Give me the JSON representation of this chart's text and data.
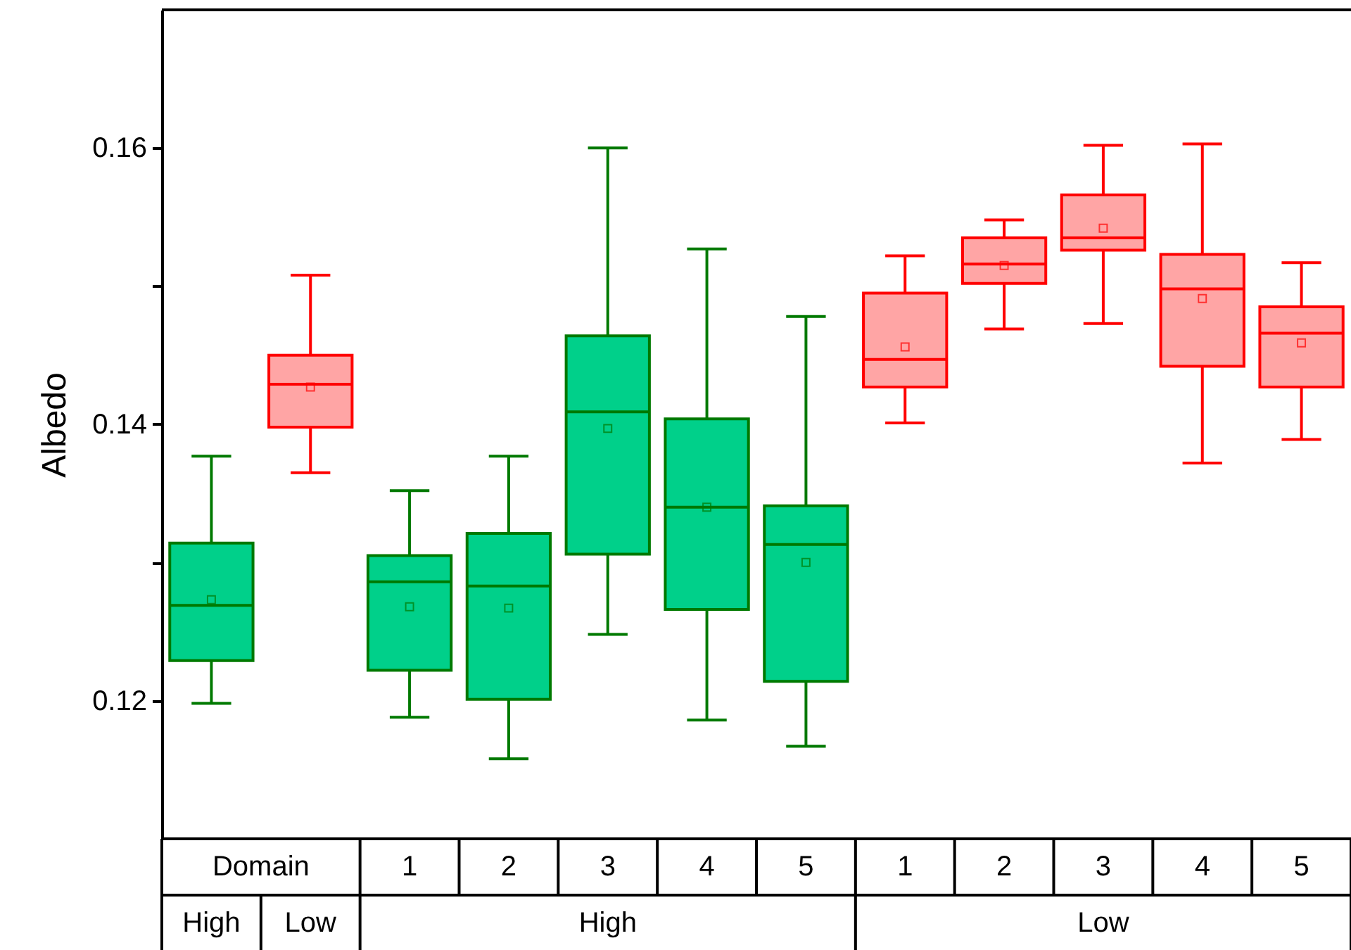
{
  "chart_data": {
    "type": "box",
    "ylabel": "Albedo",
    "categories": [
      "High",
      "Low",
      "1",
      "2",
      "3",
      "4",
      "5",
      "1",
      "2",
      "3",
      "4",
      "5"
    ],
    "annotations": [
      "Domain",
      "High",
      "Low"
    ],
    "ylim": [
      0.11,
      0.17
    ],
    "yticks": [
      0.12,
      {
        "value": 0.13,
        "label": null
      },
      0.14,
      {
        "value": 0.15,
        "label": null
      },
      0.16
    ],
    "series": [
      {
        "color": "#00d08a",
        "boxes": [
          {
            "low": 0.1198,
            "q1": 0.1229,
            "median": 0.1269,
            "q3": 0.1314,
            "high": 0.1377,
            "mean": 0.1273
          },
          null,
          {
            "low": 0.1188,
            "q1": 0.1222,
            "median": 0.1286,
            "q3": 0.1305,
            "high": 0.1352,
            "mean": 0.1268
          },
          {
            "low": 0.1158,
            "q1": 0.1201,
            "median": 0.1283,
            "q3": 0.1321,
            "high": 0.1377,
            "mean": 0.1267
          },
          {
            "low": 0.1248,
            "q1": 0.1306,
            "median": 0.1409,
            "q3": 0.1464,
            "high": 0.16,
            "mean": 0.1397
          },
          {
            "low": 0.1186,
            "q1": 0.1266,
            "median": 0.134,
            "q3": 0.1404,
            "high": 0.1527,
            "mean": 0.134
          },
          {
            "low": 0.1167,
            "q1": 0.1214,
            "median": 0.1313,
            "q3": 0.1341,
            "high": 0.1478,
            "mean": 0.13
          },
          null,
          null,
          null,
          null,
          null
        ]
      },
      {
        "color": "#ffa5a5",
        "boxes": [
          null,
          {
            "low": 0.1365,
            "q1": 0.1398,
            "median": 0.1429,
            "q3": 0.145,
            "high": 0.1508,
            "mean": 0.1427
          },
          null,
          null,
          null,
          null,
          null,
          {
            "low": 0.1401,
            "q1": 0.1427,
            "median": 0.1447,
            "q3": 0.1495,
            "high": 0.1522,
            "mean": 0.1456
          },
          {
            "low": 0.1469,
            "q1": 0.1502,
            "median": 0.1516,
            "q3": 0.1535,
            "high": 0.1548,
            "mean": 0.1515
          },
          {
            "low": 0.1473,
            "q1": 0.1526,
            "median": 0.1535,
            "q3": 0.1566,
            "high": 0.1602,
            "mean": 0.1542
          },
          {
            "low": 0.1372,
            "q1": 0.1442,
            "median": 0.1498,
            "q3": 0.1523,
            "high": 0.1603,
            "mean": 0.1491
          },
          {
            "low": 0.1389,
            "q1": 0.1427,
            "median": 0.1466,
            "q3": 0.1485,
            "high": 0.1517,
            "mean": 0.1459
          }
        ]
      }
    ]
  }
}
